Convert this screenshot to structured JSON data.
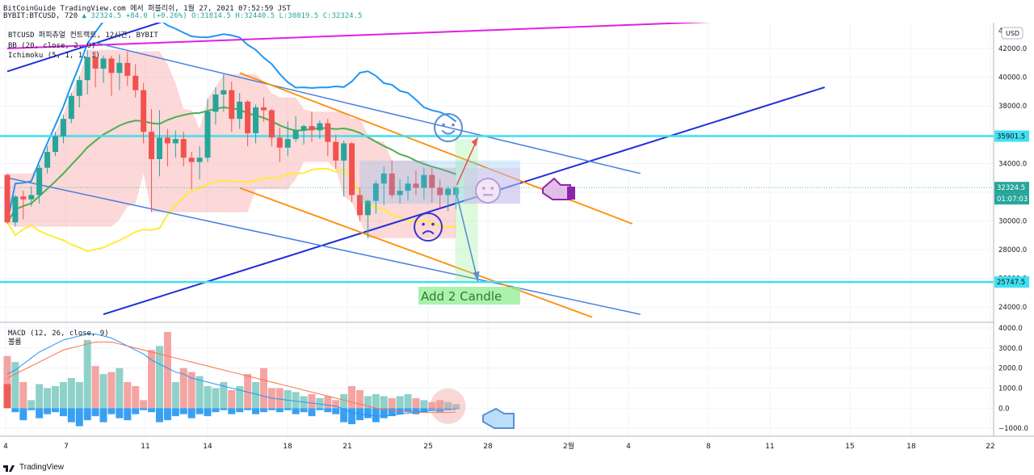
{
  "header": {
    "line1": "BitCoinGuide TradingView.com 에서 퍼블리쉬, 1월 27, 2021 07:52:59 JST",
    "symbol": "BYBIT:BTCUSD, 720",
    "last": "32324.5",
    "change": "+84.0 (+0.26%)",
    "o": "O:31814.5",
    "h": "H:32440.5",
    "l": "L:30819.5",
    "c": "C:32324.5"
  },
  "legend": {
    "title": "BTCUSD 퍼피츄얼 컨트랙트, 12시간, BYBIT",
    "bb": "BB (20, close, 2, 0)",
    "ichimoku": "Ichimoku (5, 1, 1, 1)",
    "macd": "MACD (12, 26, close, 9)",
    "hist": "볼륨"
  },
  "annotation": "Add 2 Candle",
  "currency": "USD",
  "price_badges": {
    "current": "32324.5",
    "countdown": "01:07:03",
    "level1": "35901.5",
    "level2": "25747.5"
  },
  "footer": "TradingView",
  "colors": {
    "up": "#26a69a",
    "down": "#ef5350",
    "cloud": "#f8a8a8",
    "bb_upper": "#2196f3",
    "bb_mid": "#4caf50",
    "bb_lower": "#ffeb3b",
    "trend_blue": "#1e2fd8",
    "trend_pink": "#e020e0",
    "channel_orange": "#ff8c00",
    "level_cyan": "#3fe0f0",
    "macd": "#2196f3",
    "signal": "#ff7043"
  },
  "chart_data": [
    {
      "type": "candlestick",
      "title": "BTCUSD 퍼피츄얼 컨트랙트, 12시간, BYBIT",
      "x_ticks": [
        "4",
        "7",
        "11",
        "14",
        "18",
        "21",
        "25",
        "28",
        "2월",
        "4",
        "8",
        "11",
        "15",
        "18",
        "22"
      ],
      "y_ticks": [
        24000,
        26000,
        28000,
        30000,
        32000,
        34000,
        36000,
        38000,
        40000,
        42000
      ],
      "ylim": [
        23000,
        43800
      ],
      "levels": [
        35901.5,
        25747.5
      ],
      "candles": [
        [
          33200,
          33300,
          29800,
          29900
        ],
        [
          29900,
          31800,
          29600,
          31700
        ],
        [
          31700,
          32100,
          30100,
          31500
        ],
        [
          31500,
          32400,
          31000,
          31800
        ],
        [
          31800,
          33900,
          31200,
          33700
        ],
        [
          33700,
          35200,
          33300,
          34800
        ],
        [
          34800,
          36200,
          34500,
          35900
        ],
        [
          35900,
          37400,
          35400,
          37100
        ],
        [
          37100,
          38900,
          36800,
          38700
        ],
        [
          38700,
          40100,
          37900,
          39800
        ],
        [
          39800,
          41900,
          38800,
          41400
        ],
        [
          41400,
          41800,
          39300,
          40600
        ],
        [
          40600,
          41500,
          39600,
          41300
        ],
        [
          41300,
          41500,
          38700,
          40300
        ],
        [
          40300,
          41600,
          39100,
          41000
        ],
        [
          41000,
          41800,
          39400,
          40100
        ],
        [
          40100,
          40900,
          38600,
          39100
        ],
        [
          39100,
          39600,
          35400,
          36200
        ],
        [
          36200,
          37800,
          30600,
          34300
        ],
        [
          34300,
          37700,
          33100,
          35800
        ],
        [
          35800,
          36400,
          33800,
          35400
        ],
        [
          35400,
          36300,
          34400,
          35700
        ],
        [
          35700,
          36200,
          33800,
          34400
        ],
        [
          34400,
          34800,
          32200,
          34100
        ],
        [
          34100,
          35200,
          32900,
          34400
        ],
        [
          34400,
          38500,
          34100,
          37600
        ],
        [
          37600,
          39300,
          36700,
          38800
        ],
        [
          38800,
          40200,
          37600,
          39100
        ],
        [
          39100,
          39700,
          36200,
          37100
        ],
        [
          37100,
          38900,
          36400,
          38300
        ],
        [
          38300,
          38400,
          35200,
          36100
        ],
        [
          36100,
          38100,
          35400,
          37900
        ],
        [
          37900,
          38600,
          36900,
          37700
        ],
        [
          37700,
          37800,
          35200,
          35800
        ],
        [
          35800,
          36500,
          34100,
          35100
        ],
        [
          35100,
          36900,
          34500,
          35700
        ],
        [
          35700,
          37300,
          35500,
          36300
        ],
        [
          36300,
          36700,
          35300,
          36600
        ],
        [
          36600,
          37600,
          35500,
          36300
        ],
        [
          36300,
          37000,
          35700,
          36800
        ],
        [
          36800,
          37100,
          34500,
          35500
        ],
        [
          35500,
          36000,
          33600,
          34200
        ],
        [
          34200,
          35600,
          31700,
          35400
        ],
        [
          35400,
          35500,
          31300,
          31800
        ],
        [
          31800,
          32300,
          30000,
          30400
        ],
        [
          30400,
          31500,
          28800,
          31400
        ],
        [
          31400,
          32800,
          30500,
          32600
        ],
        [
          32600,
          33800,
          31100,
          33300
        ],
        [
          33300,
          34200,
          31600,
          31800
        ],
        [
          31800,
          32900,
          31200,
          32100
        ],
        [
          32100,
          33100,
          31400,
          32600
        ],
        [
          32600,
          33500,
          31800,
          32300
        ],
        [
          32300,
          33700,
          31500,
          33200
        ],
        [
          33200,
          33700,
          31300,
          32300
        ],
        [
          32300,
          32900,
          30900,
          31800
        ],
        [
          31800,
          32400,
          30700,
          32240
        ],
        [
          31814.5,
          32440.5,
          30819.5,
          32324.5
        ]
      ]
    },
    {
      "type": "bar",
      "title": "MACD (12, 26, close, 9)",
      "y_ticks": [
        -1000,
        0,
        1000,
        2000,
        3000,
        4000
      ],
      "ylim": [
        -1400,
        4200
      ],
      "histogram": [
        1200,
        -200,
        -600,
        -100,
        -500,
        -300,
        -200,
        -400,
        -700,
        -900,
        -600,
        -400,
        -700,
        -300,
        -500,
        -600,
        -300,
        -100,
        -200,
        -700,
        -600,
        -400,
        -300,
        -500,
        -300,
        -400,
        -200,
        -100,
        -300,
        -200,
        -100,
        -300,
        -200,
        -100,
        -200,
        -100,
        -300,
        -200,
        -400,
        -100,
        -200,
        -300,
        -700,
        -800,
        -600,
        -500,
        -700,
        -500,
        -400,
        -300,
        -200,
        -300,
        -200,
        -100,
        -200,
        -100,
        -50
      ],
      "volume": [
        2600,
        2300,
        1300,
        400,
        1200,
        1000,
        1100,
        1300,
        1500,
        1300,
        3400,
        2100,
        1700,
        1800,
        2000,
        1300,
        1100,
        400,
        2900,
        3100,
        3800,
        1300,
        2000,
        1800,
        1600,
        1100,
        1000,
        1300,
        900,
        1100,
        1700,
        1300,
        2000,
        1000,
        1000,
        900,
        800,
        600,
        700,
        500,
        600,
        400,
        700,
        1100,
        900,
        600,
        700,
        600,
        500,
        600,
        700,
        500,
        400,
        300,
        400,
        300,
        200
      ],
      "macd": [
        1700,
        1900,
        2200,
        2500,
        2800,
        3000,
        3200,
        3400,
        3500,
        3600,
        3700,
        3700,
        3600,
        3500,
        3300,
        3100,
        2900,
        2700,
        2400,
        2200,
        2000,
        1800,
        1700,
        1500,
        1400,
        1300,
        1200,
        1100,
        1000,
        900,
        800,
        700,
        600,
        500,
        450,
        400,
        350,
        300,
        250,
        200,
        150,
        100,
        -50,
        -200,
        -300,
        -350,
        -400,
        -380,
        -350,
        -300,
        -250,
        -200,
        -150,
        -120,
        -100,
        -80,
        -60
      ],
      "signal": [
        1500,
        1700,
        1900,
        2100,
        2300,
        2500,
        2700,
        2900,
        3000,
        3100,
        3200,
        3300,
        3300,
        3300,
        3200,
        3100,
        3000,
        2900,
        2800,
        2700,
        2600,
        2500,
        2400,
        2300,
        2200,
        2100,
        2000,
        1900,
        1800,
        1700,
        1600,
        1500,
        1400,
        1300,
        1200,
        1100,
        1000,
        900,
        800,
        700,
        600,
        500,
        400,
        300,
        200,
        100,
        0,
        -50,
        -100,
        -150,
        -180,
        -200,
        -210,
        -220,
        -220,
        -210,
        -200
      ]
    }
  ]
}
